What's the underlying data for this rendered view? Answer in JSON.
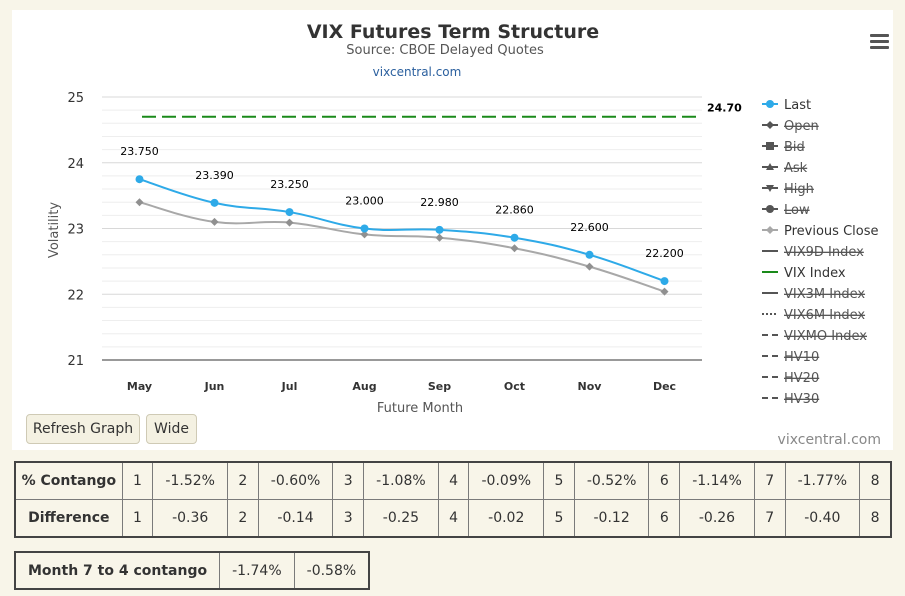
{
  "menu_icon": "hamburger-menu-icon",
  "buttons": {
    "refresh": "Refresh Graph",
    "wide": "Wide"
  },
  "credit": "vixcentral.com",
  "chart_data": {
    "type": "line",
    "title": "VIX Futures Term Structure",
    "subtitle": "Source: CBOE Delayed Quotes",
    "link": "vixcentral.com",
    "categories": [
      "May",
      "Jun",
      "Jul",
      "Aug",
      "Sep",
      "Oct",
      "Nov",
      "Dec"
    ],
    "xlabel": "Future Month",
    "ylabel": "Volatility",
    "ylim": [
      21,
      25
    ],
    "yticks": [
      "21",
      "22",
      "23",
      "24",
      "25"
    ],
    "grid": true,
    "legend_position": "right",
    "series": [
      {
        "name": "Last",
        "color": "#2eaae8",
        "values": [
          23.75,
          23.39,
          23.25,
          23.0,
          22.98,
          22.86,
          22.6,
          22.2
        ],
        "labels": [
          "23.750",
          "23.390",
          "23.250",
          "23.000",
          "22.980",
          "22.860",
          "22.600",
          "22.200"
        ]
      },
      {
        "name": "Previous Close",
        "color": "#a8a8a8",
        "values": [
          23.4,
          23.1,
          23.09,
          22.91,
          22.86,
          22.7,
          22.42,
          22.04
        ]
      },
      {
        "name": "VIX Index",
        "color": "#1a8a1a",
        "value": 24.7,
        "label": "24.70",
        "style": "dashed"
      }
    ],
    "legend": [
      {
        "label": "Last",
        "visible": true,
        "icon": "circle-line",
        "color": "#2eaae8"
      },
      {
        "label": "Open",
        "visible": false,
        "icon": "diamond-line",
        "color": "#555"
      },
      {
        "label": "Bid",
        "visible": false,
        "icon": "square-line",
        "color": "#555"
      },
      {
        "label": "Ask",
        "visible": false,
        "icon": "triangle-line",
        "color": "#555"
      },
      {
        "label": "High",
        "visible": false,
        "icon": "triangle-down-line",
        "color": "#555"
      },
      {
        "label": "Low",
        "visible": false,
        "icon": "circle-line",
        "color": "#555"
      },
      {
        "label": "Previous Close",
        "visible": true,
        "icon": "diamond-line",
        "color": "#a8a8a8"
      },
      {
        "label": "VIX9D Index",
        "visible": false,
        "icon": "solid-line",
        "color": "#555"
      },
      {
        "label": "VIX Index",
        "visible": true,
        "icon": "solid-line",
        "color": "#1a8a1a"
      },
      {
        "label": "VIX3M Index",
        "visible": false,
        "icon": "solid-line",
        "color": "#555"
      },
      {
        "label": "VIX6M Index",
        "visible": false,
        "icon": "dotted-line",
        "color": "#555"
      },
      {
        "label": "VIXMO Index",
        "visible": false,
        "icon": "dash-line",
        "color": "#555"
      },
      {
        "label": "HV10",
        "visible": false,
        "icon": "dash-line",
        "color": "#555"
      },
      {
        "label": "HV20",
        "visible": false,
        "icon": "dash-line",
        "color": "#555"
      },
      {
        "label": "HV30",
        "visible": false,
        "icon": "dash-line",
        "color": "#555"
      }
    ]
  },
  "contango_table": {
    "rows": [
      {
        "label": "% Contango",
        "cells": [
          [
            "1",
            "-1.52%"
          ],
          [
            "2",
            "-0.60%"
          ],
          [
            "3",
            "-1.08%"
          ],
          [
            "4",
            "-0.09%"
          ],
          [
            "5",
            "-0.52%"
          ],
          [
            "6",
            "-1.14%"
          ],
          [
            "7",
            "-1.77%"
          ]
        ],
        "last": "8"
      },
      {
        "label": "Difference",
        "cells": [
          [
            "1",
            "-0.36"
          ],
          [
            "2",
            "-0.14"
          ],
          [
            "3",
            "-0.25"
          ],
          [
            "4",
            "-0.02"
          ],
          [
            "5",
            "-0.12"
          ],
          [
            "6",
            "-0.26"
          ],
          [
            "7",
            "-0.40"
          ]
        ],
        "last": "8"
      }
    ]
  },
  "month_table": {
    "label": "Month 7 to 4 contango",
    "values": [
      "-1.74%",
      "-0.58%"
    ]
  }
}
